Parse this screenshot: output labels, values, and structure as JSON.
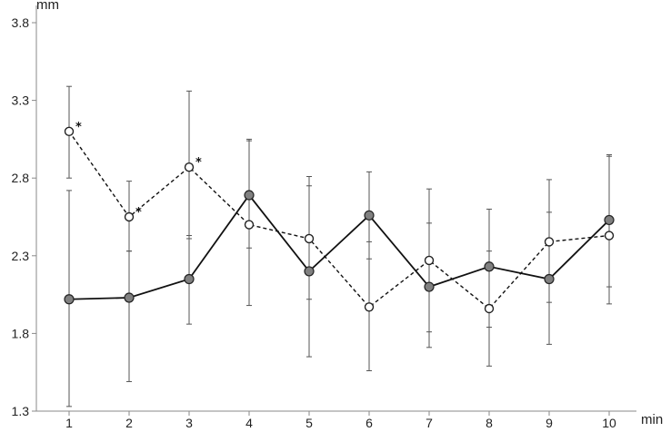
{
  "chart_data": {
    "type": "line",
    "title": "",
    "xlabel": "min",
    "ylabel": "mm",
    "x": [
      1,
      2,
      3,
      4,
      5,
      6,
      7,
      8,
      9,
      10
    ],
    "ylim": [
      1.3,
      3.8
    ],
    "yticks": [
      "1.3",
      "1.8",
      "2.3",
      "2.8",
      "3.3",
      "3.8"
    ],
    "xticks": [
      "1",
      "2",
      "3",
      "4",
      "5",
      "6",
      "7",
      "8",
      "9",
      "10"
    ],
    "grid": false,
    "legend": "none",
    "series": [
      {
        "style": "solid line, filled grey circle markers",
        "color": "#808080",
        "values": [
          2.02,
          2.03,
          2.15,
          2.69,
          2.2,
          2.56,
          2.1,
          2.23,
          2.15,
          2.53
        ],
        "err_low": [
          1.33,
          1.49,
          1.86,
          1.98,
          1.65,
          1.56,
          1.71,
          1.59,
          1.73,
          1.99
        ],
        "err_high": [
          2.72,
          2.33,
          2.43,
          3.05,
          2.75,
          2.84,
          2.51,
          2.6,
          2.58,
          2.95
        ]
      },
      {
        "style": "dashed line, open circle markers",
        "color": "#ffffff",
        "values": [
          3.1,
          2.55,
          2.87,
          2.5,
          2.41,
          1.97,
          2.27,
          1.96,
          2.39,
          2.43
        ],
        "err_low": [
          2.8,
          2.33,
          2.41,
          2.35,
          2.02,
          2.28,
          1.81,
          1.84,
          2.0,
          2.1
        ],
        "err_high": [
          3.39,
          2.78,
          3.36,
          3.04,
          2.81,
          2.39,
          2.73,
          2.33,
          2.79,
          2.94
        ]
      }
    ],
    "annotations": [
      {
        "text": "*",
        "x": 1,
        "y": 3.1,
        "series": 1
      },
      {
        "text": "*",
        "x": 2,
        "y": 2.55,
        "series": 1
      },
      {
        "text": "*",
        "x": 3,
        "y": 2.87,
        "series": 1
      }
    ]
  }
}
